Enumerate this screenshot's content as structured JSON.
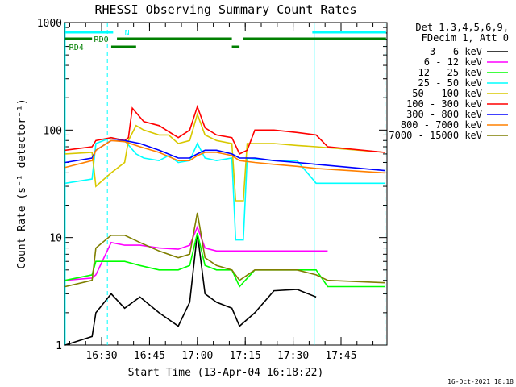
{
  "chart_data": {
    "type": "line",
    "title": "RHESSI Observing Summary Count Rates",
    "xlabel": "Start Time (13-Apr-04 16:18:22)",
    "ylabel": "Count Rate (s⁻¹ detector⁻¹)",
    "footer": "16-Oct-2021 18:18",
    "y_scale": "log",
    "ylim": [
      1,
      1000
    ],
    "xlim": [
      16.3061,
      17.99
    ],
    "y_ticks": [
      {
        "value": 1,
        "label": "1"
      },
      {
        "value": 10,
        "label": "10"
      },
      {
        "value": 100,
        "label": "100"
      },
      {
        "value": 1000,
        "label": "1000"
      }
    ],
    "x_ticks": [
      {
        "value": 16.5,
        "label": "16:30"
      },
      {
        "value": 16.75,
        "label": "16:45"
      },
      {
        "value": 17.0,
        "label": "17:00"
      },
      {
        "value": 17.25,
        "label": "17:15"
      },
      {
        "value": 17.5,
        "label": "17:30"
      },
      {
        "value": 17.75,
        "label": "17:45"
      }
    ],
    "legend_header": [
      "Det 1,3,4,5,6,9,",
      "FDecim 1, Att 0"
    ],
    "legend_position": "right",
    "flags": [
      {
        "label": "N",
        "color": "#00ffff",
        "segments": [
          [
            16.31,
            16.56
          ],
          [
            17.6,
            17.985
          ]
        ]
      },
      {
        "label": "RD0",
        "color": "#007f00",
        "segments": [
          [
            16.31,
            16.45
          ],
          [
            16.58,
            17.18
          ],
          [
            17.24,
            17.985
          ]
        ]
      },
      {
        "label": "RD4",
        "color": "#007f00",
        "segments": [
          [
            16.55,
            16.68
          ],
          [
            17.18,
            17.22
          ]
        ]
      }
    ],
    "event_lines": {
      "solid": [
        16.31,
        17.61
      ],
      "dashed": [
        16.53,
        17.98
      ]
    },
    "series": [
      {
        "name": "3 - 6 keV",
        "color": "#000000",
        "values": [
          [
            16.31,
            1.0
          ],
          [
            16.45,
            1.2
          ],
          [
            16.47,
            2.0
          ],
          [
            16.55,
            3.0
          ],
          [
            16.62,
            2.2
          ],
          [
            16.7,
            2.8
          ],
          [
            16.8,
            2.0
          ],
          [
            16.9,
            1.5
          ],
          [
            16.96,
            2.5
          ],
          [
            17.0,
            11.0
          ],
          [
            17.04,
            3.0
          ],
          [
            17.1,
            2.5
          ],
          [
            17.18,
            2.2
          ],
          [
            17.22,
            1.5
          ],
          [
            17.3,
            2.0
          ],
          [
            17.4,
            3.2
          ],
          [
            17.52,
            3.3
          ],
          [
            17.62,
            2.8
          ]
        ]
      },
      {
        "name": "6 - 12 keV",
        "color": "#ff00ff",
        "values": [
          [
            16.31,
            4.0
          ],
          [
            16.45,
            4.2
          ],
          [
            16.47,
            4.5
          ],
          [
            16.55,
            9.0
          ],
          [
            16.62,
            8.5
          ],
          [
            16.7,
            8.5
          ],
          [
            16.8,
            8.0
          ],
          [
            16.9,
            7.8
          ],
          [
            16.96,
            8.5
          ],
          [
            17.0,
            12.5
          ],
          [
            17.04,
            8.0
          ],
          [
            17.1,
            7.5
          ],
          [
            17.18,
            7.5
          ],
          [
            17.22,
            7.5
          ],
          [
            17.3,
            7.5
          ],
          [
            17.4,
            7.5
          ],
          [
            17.52,
            7.5
          ],
          [
            17.62,
            7.5
          ],
          [
            17.68,
            7.5
          ]
        ]
      },
      {
        "name": "12 - 25 keV",
        "color": "#00ff00",
        "values": [
          [
            16.31,
            4.0
          ],
          [
            16.45,
            4.5
          ],
          [
            16.47,
            6.0
          ],
          [
            16.55,
            6.0
          ],
          [
            16.62,
            6.0
          ],
          [
            16.7,
            5.5
          ],
          [
            16.8,
            5.0
          ],
          [
            16.9,
            5.0
          ],
          [
            16.96,
            5.5
          ],
          [
            17.0,
            11.0
          ],
          [
            17.04,
            5.5
          ],
          [
            17.1,
            5.0
          ],
          [
            17.18,
            5.0
          ],
          [
            17.22,
            3.5
          ],
          [
            17.3,
            5.0
          ],
          [
            17.4,
            5.0
          ],
          [
            17.52,
            5.0
          ],
          [
            17.62,
            5.0
          ],
          [
            17.68,
            3.5
          ],
          [
            17.98,
            3.5
          ]
        ]
      },
      {
        "name": "25 - 50 keV",
        "color": "#00ffff",
        "values": [
          [
            16.31,
            32.0
          ],
          [
            16.45,
            35.0
          ],
          [
            16.47,
            75.0
          ],
          [
            16.55,
            85.0
          ],
          [
            16.62,
            80.0
          ],
          [
            16.68,
            60.0
          ],
          [
            16.72,
            55.0
          ],
          [
            16.8,
            52.0
          ],
          [
            16.85,
            58.0
          ],
          [
            16.9,
            50.0
          ],
          [
            16.96,
            52.0
          ],
          [
            17.0,
            75.0
          ],
          [
            17.04,
            55.0
          ],
          [
            17.1,
            52.0
          ],
          [
            17.18,
            55.0
          ],
          [
            17.2,
            9.5
          ],
          [
            17.24,
            9.5
          ],
          [
            17.26,
            55.0
          ],
          [
            17.3,
            54.0
          ],
          [
            17.4,
            52.0
          ],
          [
            17.52,
            52.0
          ],
          [
            17.62,
            32.0
          ],
          [
            17.98,
            32.0
          ]
        ]
      },
      {
        "name": "50 - 100 keV",
        "color": "#d8c800",
        "values": [
          [
            16.31,
            60.0
          ],
          [
            16.45,
            62.0
          ],
          [
            16.47,
            30.0
          ],
          [
            16.55,
            40.0
          ],
          [
            16.62,
            50.0
          ],
          [
            16.64,
            80.0
          ],
          [
            16.68,
            110.0
          ],
          [
            16.72,
            100.0
          ],
          [
            16.8,
            90.0
          ],
          [
            16.85,
            90.0
          ],
          [
            16.9,
            75.0
          ],
          [
            16.96,
            80.0
          ],
          [
            17.0,
            140.0
          ],
          [
            17.04,
            90.0
          ],
          [
            17.1,
            80.0
          ],
          [
            17.18,
            75.0
          ],
          [
            17.2,
            22.0
          ],
          [
            17.24,
            22.0
          ],
          [
            17.26,
            75.0
          ],
          [
            17.3,
            75.0
          ],
          [
            17.4,
            75.0
          ],
          [
            17.52,
            72.0
          ],
          [
            17.62,
            70.0
          ],
          [
            17.98,
            62.0
          ]
        ]
      },
      {
        "name": "100 - 300 keV",
        "color": "#ff0000",
        "values": [
          [
            16.31,
            65.0
          ],
          [
            16.45,
            70.0
          ],
          [
            16.47,
            80.0
          ],
          [
            16.55,
            85.0
          ],
          [
            16.62,
            80.0
          ],
          [
            16.64,
            85.0
          ],
          [
            16.66,
            160.0
          ],
          [
            16.72,
            120.0
          ],
          [
            16.8,
            110.0
          ],
          [
            16.9,
            85.0
          ],
          [
            16.96,
            100.0
          ],
          [
            17.0,
            165.0
          ],
          [
            17.04,
            105.0
          ],
          [
            17.1,
            90.0
          ],
          [
            17.18,
            85.0
          ],
          [
            17.22,
            60.0
          ],
          [
            17.26,
            65.0
          ],
          [
            17.3,
            100.0
          ],
          [
            17.4,
            100.0
          ],
          [
            17.52,
            95.0
          ],
          [
            17.62,
            90.0
          ],
          [
            17.68,
            70.0
          ],
          [
            17.98,
            62.0
          ]
        ]
      },
      {
        "name": "300 - 800 keV",
        "color": "#0000ff",
        "values": [
          [
            16.31,
            50.0
          ],
          [
            16.45,
            55.0
          ],
          [
            16.47,
            65.0
          ],
          [
            16.55,
            80.0
          ],
          [
            16.62,
            80.0
          ],
          [
            16.7,
            75.0
          ],
          [
            16.8,
            65.0
          ],
          [
            16.9,
            55.0
          ],
          [
            16.96,
            55.0
          ],
          [
            17.0,
            60.0
          ],
          [
            17.04,
            65.0
          ],
          [
            17.1,
            65.0
          ],
          [
            17.18,
            60.0
          ],
          [
            17.22,
            55.0
          ],
          [
            17.3,
            55.0
          ],
          [
            17.4,
            52.0
          ],
          [
            17.52,
            50.0
          ],
          [
            17.62,
            48.0
          ],
          [
            17.98,
            42.0
          ]
        ]
      },
      {
        "name": "800 - 7000 keV",
        "color": "#ff8000",
        "values": [
          [
            16.31,
            45.0
          ],
          [
            16.45,
            52.0
          ],
          [
            16.47,
            65.0
          ],
          [
            16.55,
            80.0
          ],
          [
            16.62,
            78.0
          ],
          [
            16.7,
            70.0
          ],
          [
            16.8,
            62.0
          ],
          [
            16.9,
            52.0
          ],
          [
            16.96,
            52.0
          ],
          [
            17.0,
            58.0
          ],
          [
            17.04,
            62.0
          ],
          [
            17.1,
            62.0
          ],
          [
            17.18,
            58.0
          ],
          [
            17.22,
            52.0
          ],
          [
            17.3,
            50.0
          ],
          [
            17.4,
            48.0
          ],
          [
            17.52,
            46.0
          ],
          [
            17.62,
            44.0
          ],
          [
            17.98,
            40.0
          ]
        ]
      },
      {
        "name": "7000 - 15000 keV",
        "color": "#7f7f00",
        "values": [
          [
            16.31,
            3.5
          ],
          [
            16.45,
            4.0
          ],
          [
            16.47,
            8.0
          ],
          [
            16.55,
            10.5
          ],
          [
            16.62,
            10.5
          ],
          [
            16.7,
            9.0
          ],
          [
            16.8,
            7.5
          ],
          [
            16.9,
            6.5
          ],
          [
            16.96,
            7.0
          ],
          [
            17.0,
            17.0
          ],
          [
            17.04,
            6.5
          ],
          [
            17.1,
            5.5
          ],
          [
            17.18,
            5.0
          ],
          [
            17.22,
            4.0
          ],
          [
            17.3,
            5.0
          ],
          [
            17.4,
            5.0
          ],
          [
            17.52,
            5.0
          ],
          [
            17.62,
            4.5
          ],
          [
            17.68,
            4.0
          ],
          [
            17.98,
            3.8
          ]
        ]
      }
    ]
  }
}
